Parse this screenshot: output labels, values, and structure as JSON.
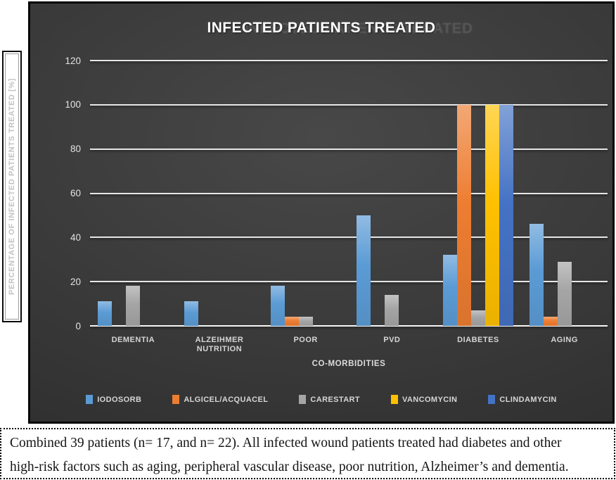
{
  "chart_data": {
    "type": "bar",
    "title": "INFECTED PATIENTS TREATED",
    "xlabel": "CO-MORBIDITIES",
    "ylabel": "PERCENTAGE OF INFECTED PATIENTS TREATED [%]",
    "ylim": [
      0,
      120
    ],
    "yticks": [
      0,
      20,
      40,
      60,
      80,
      100,
      120
    ],
    "grid": true,
    "legend_position": "bottom",
    "categories": [
      "DEMENTIA",
      "ALZEIHMER\nNUTRITION",
      "POOR",
      "PVD",
      "DIABETES",
      "AGING"
    ],
    "series": [
      {
        "name": "IODOSORB",
        "color": "#5B9BD5",
        "values": [
          11,
          11,
          18,
          50,
          32,
          46
        ]
      },
      {
        "name": "ALGICEL/ACQUACEL",
        "color": "#ED7D31",
        "values": [
          0,
          0,
          4,
          0,
          100,
          4
        ]
      },
      {
        "name": "CARESTART",
        "color": "#A5A5A5",
        "values": [
          18,
          0,
          4,
          14,
          7,
          29
        ]
      },
      {
        "name": "VANCOMYCIN",
        "color": "#FFC000",
        "values": [
          0,
          0,
          0,
          0,
          100,
          0
        ]
      },
      {
        "name": "CLINDAMYCIN",
        "color": "#4472C4",
        "values": [
          0,
          0,
          0,
          0,
          100,
          0
        ]
      }
    ]
  },
  "caption": {
    "line1": "Combined 39 patients (n= 17, and n= 22). All infected wound patients treated had diabetes and other",
    "line2": "high-risk factors such as aging, peripheral vascular disease, poor nutrition, Alzheimer’s and dementia."
  },
  "colors": {
    "panel_background": "#3a3a3a",
    "gridline": "#e6e6e6",
    "tick_text": "#e3e3e3",
    "category_text": "#d6d6d6",
    "title_text": "#ffffff",
    "title_ghost": "#585858"
  }
}
